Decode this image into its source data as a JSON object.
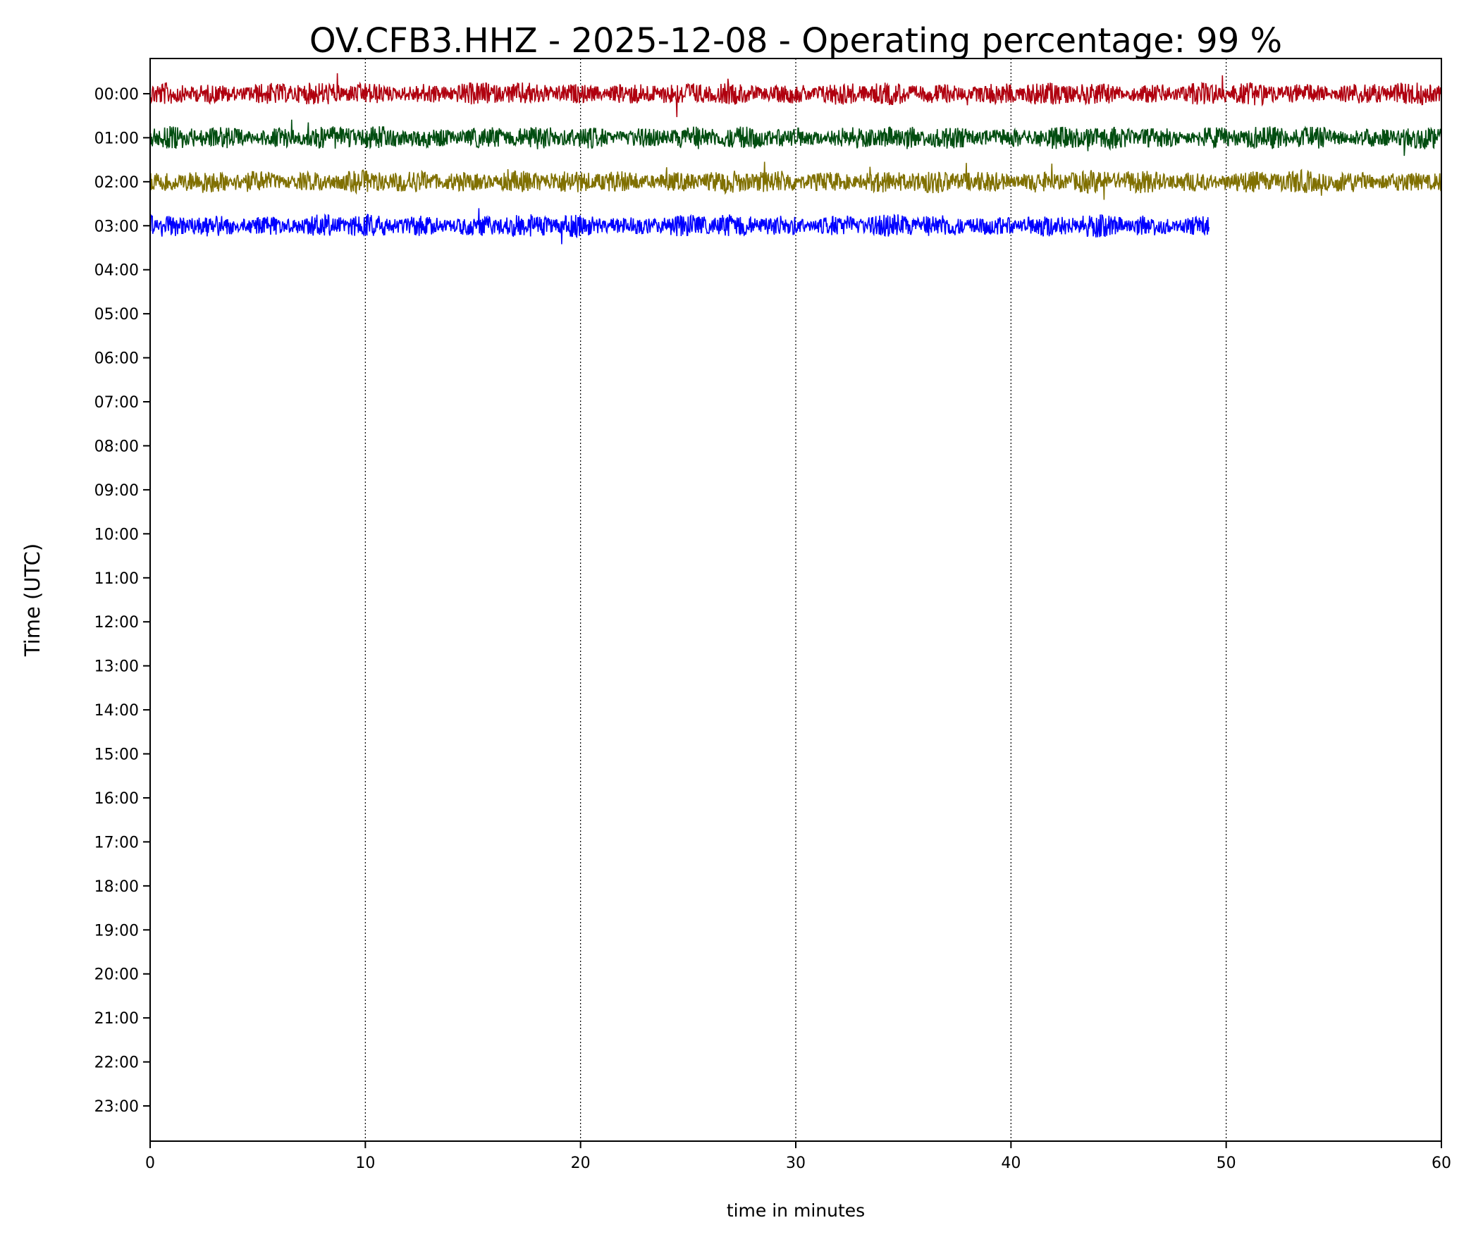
{
  "chart_data": {
    "type": "line",
    "title": "OV.CFB3.HHZ - 2025-12-08 - Operating percentage: 99 %",
    "xlabel": "time in minutes",
    "ylabel": "Time (UTC)",
    "xlim": [
      0,
      60
    ],
    "ylim": [
      23.8,
      -0.8
    ],
    "x_ticks": [
      0,
      10,
      20,
      30,
      40,
      50,
      60
    ],
    "y_tick_labels": [
      "00:00",
      "01:00",
      "02:00",
      "03:00",
      "04:00",
      "05:00",
      "06:00",
      "07:00",
      "08:00",
      "09:00",
      "10:00",
      "11:00",
      "12:00",
      "13:00",
      "14:00",
      "15:00",
      "16:00",
      "17:00",
      "18:00",
      "19:00",
      "20:00",
      "21:00",
      "22:00",
      "23:00"
    ],
    "grid": "vertical dotted at x ticks",
    "series": [
      {
        "hour": 0,
        "color": "#b0000f",
        "x_start": 0,
        "x_end": 60
      },
      {
        "hour": 1,
        "color": "#004d10",
        "x_start": 0,
        "x_end": 60
      },
      {
        "hour": 2,
        "color": "#807000",
        "x_start": 0,
        "x_end": 60
      },
      {
        "hour": 3,
        "color": "#0000ff",
        "x_start": 0,
        "x_end": 49.2
      }
    ]
  }
}
